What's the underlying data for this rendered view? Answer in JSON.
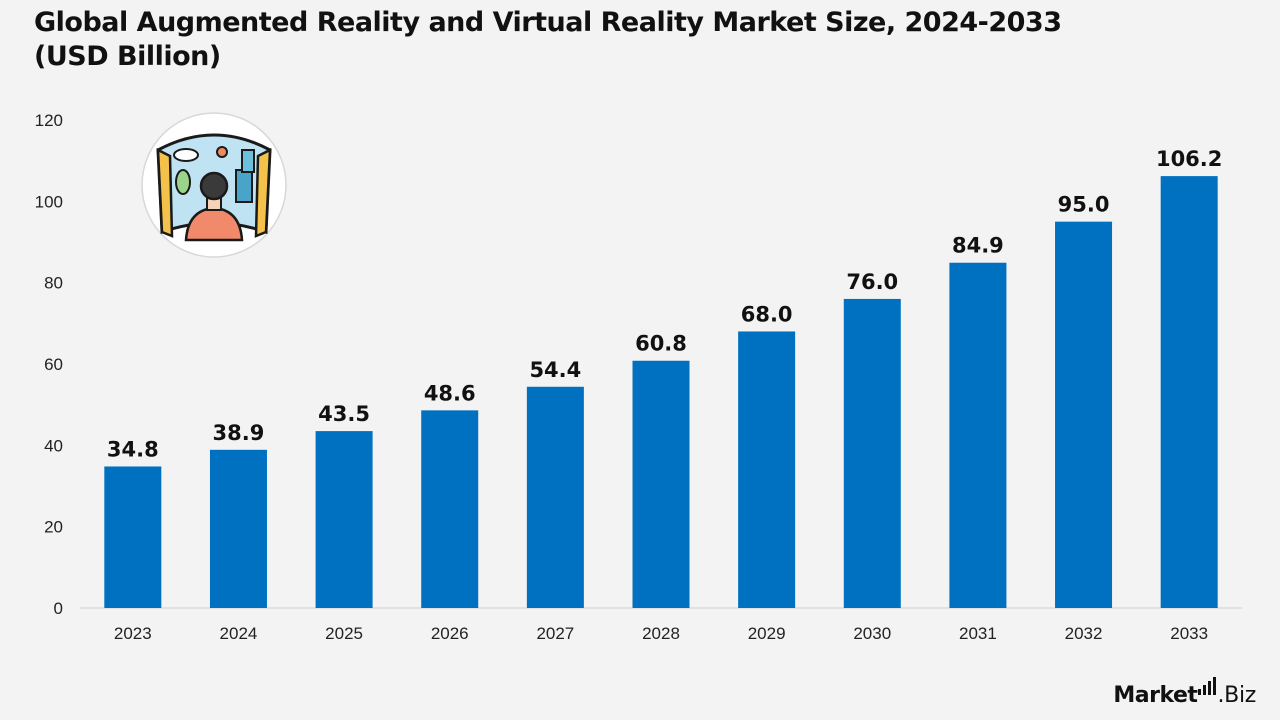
{
  "chart_data": {
    "type": "bar",
    "title": "Global Augmented Reality and Virtual Reality Market Size, 2024-2033 (USD Billion)",
    "categories": [
      "2023",
      "2024",
      "2025",
      "2026",
      "2027",
      "2028",
      "2029",
      "2030",
      "2031",
      "2032",
      "2033"
    ],
    "values": [
      34.8,
      38.9,
      43.5,
      48.6,
      54.4,
      60.8,
      68.0,
      76.0,
      84.9,
      95.0,
      106.2
    ],
    "data_labels": [
      "34.8",
      "38.9",
      "43.5",
      "48.6",
      "54.4",
      "60.8",
      "68.0",
      "76.0",
      "84.9",
      "95.0",
      "106.2"
    ],
    "ylim": [
      0,
      120
    ],
    "yticks": [
      0,
      20,
      40,
      60,
      80,
      100,
      120
    ],
    "grid": false,
    "bar_color": "#0070c0"
  },
  "decoration": {
    "icon": "vr-user-icon"
  },
  "brand": {
    "name_bold": "Market",
    "name_light": ".Biz"
  }
}
